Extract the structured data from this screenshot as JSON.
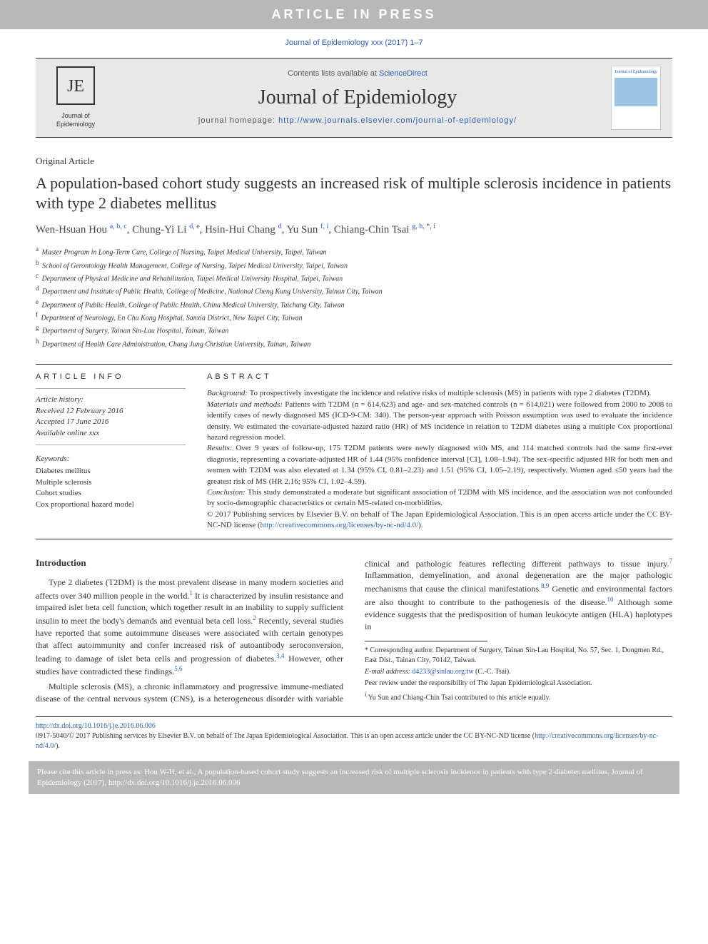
{
  "banner": "ARTICLE IN PRESS",
  "journal_ref": "Journal of Epidemiology xxx (2017) 1–7",
  "masthead": {
    "sd_prefix": "Contents lists available at ",
    "sd_link": "ScienceDirect",
    "journal_title": "Journal of Epidemiology",
    "homepage_prefix": "journal homepage: ",
    "homepage_url": "http://www.journals.elsevier.com/journal-of-epidemiology/",
    "logo_label": "Journal of Epidemiology",
    "cover_label": "Journal of Epidemiology"
  },
  "article_type": "Original Article",
  "title": "A population-based cohort study suggests an increased risk of multiple sclerosis incidence in patients with type 2 diabetes mellitus",
  "authors_html": "Wen-Hsuan Hou <sup>a, b, c</sup>, Chung-Yi Li <sup>d, e</sup>, Hsin-Hui Chang <sup>d</sup>, Yu Sun <sup>f, i</sup>, Chiang-Chin Tsai <sup>g, h, *, i</sup>",
  "affils": [
    {
      "s": "a",
      "t": "Master Program in Long-Term Care, College of Nursing, Taipei Medical University, Taipei, Taiwan"
    },
    {
      "s": "b",
      "t": "School of Gerontology Health Management, College of Nursing, Taipei Medical University, Taipei, Taiwan"
    },
    {
      "s": "c",
      "t": "Department of Physical Medicine and Rehabilitation, Taipei Medical University Hospital, Taipei, Taiwan"
    },
    {
      "s": "d",
      "t": "Department and Institute of Public Health, College of Medicine, National Cheng Kung University, Tainan City, Taiwan"
    },
    {
      "s": "e",
      "t": "Department of Public Health, College of Public Health, China Medical University, Taichung City, Taiwan"
    },
    {
      "s": "f",
      "t": "Department of Neurology, En Chu Kong Hospital, Sanxia District, New Taipei City, Taiwan"
    },
    {
      "s": "g",
      "t": "Department of Surgery, Tainan Sin-Lau Hospital, Tainan, Taiwan"
    },
    {
      "s": "h",
      "t": "Department of Health Care Administration, Chang Jung Christian University, Tainan, Taiwan"
    }
  ],
  "info": {
    "head": "ARTICLE INFO",
    "history_hd": "Article history:",
    "received": "Received 12 February 2016",
    "accepted": "Accepted 17 June 2016",
    "online": "Available online xxx",
    "kw_hd": "Keywords:",
    "keywords": [
      "Diabetes mellitus",
      "Multiple sclerosis",
      "Cohort studies",
      "Cox proportional hazard model"
    ]
  },
  "abstract": {
    "head": "ABSTRACT",
    "background_hd": "Background:",
    "background": " To prospectively investigate the incidence and relative risks of multiple sclerosis (MS) in patients with type 2 diabetes (T2DM).",
    "methods_hd": "Materials and methods:",
    "methods": " Patients with T2DM (n = 614,623) and age- and sex-matched controls (n = 614,021) were followed from 2000 to 2008 to identify cases of newly diagnosed MS (ICD-9-CM: 340). The person-year approach with Poisson assumption was used to evaluate the incidence density. We estimated the covariate-adjusted hazard ratio (HR) of MS incidence in relation to T2DM diabetes using a multiple Cox proportional hazard regression model.",
    "results_hd": "Results:",
    "results": " Over 9 years of follow-up, 175 T2DM patients were newly diagnosed with MS, and 114 matched controls had the same first-ever diagnosis, representing a covariate-adjusted HR of 1.44 (95% confidence interval [CI], 1.08–1.94). The sex-specific adjusted HR for both men and women with T2DM was also elevated at 1.34 (95% CI, 0.81–2.23) and 1.51 (95% CI, 1.05–2.19), respectively. Women aged ≤50 years had the greatest risk of MS (HR 2.16; 95% CI, 1.02–4.59).",
    "conclusion_hd": "Conclusion:",
    "conclusion": " This study demonstrated a moderate but significant association of T2DM with MS incidence, and the association was not confounded by socio-demographic characteristics or certain MS-related co-morbidities.",
    "copyright": "© 2017 Publishing services by Elsevier B.V. on behalf of The Japan Epidemiological Association. This is an open access article under the CC BY-NC-ND license (",
    "cc_url": "http://creativecommons.org/licenses/by-nc-nd/4.0/",
    "copyright_tail": ")."
  },
  "intro": {
    "head": "Introduction",
    "p1a": "Type 2 diabetes (T2DM) is the most prevalent disease in many modern societies and affects over 340 million people in the world.",
    "p1b": " It is characterized by insulin resistance and impaired islet beta cell function, which together result in an inability to supply sufficient insulin to meet the body's demands and eventual beta cell loss.",
    "p1c": " Recently, several studies have reported that some autoimmune",
    "p1d": "diseases were associated with certain genotypes that affect autoimmunity and confer increased risk of autoantibody seroconversion, leading to damage of islet beta cells and progression of diabetes.",
    "p1e": " However, other studies have contradicted these findings.",
    "p2a": "Multiple sclerosis (MS), a chronic inflammatory and progressive immune-mediated disease of the central nervous system (CNS), is a heterogeneous disorder with variable clinical and pathologic features reflecting different pathways to tissue injury.",
    "p2b": " Inflammation, demyelination, and axonal degeneration are the major pathologic mechanisms that cause the clinical manifestations.",
    "p2c": " Genetic and environmental factors are also thought to contribute to the pathogenesis of the disease.",
    "p2d": " Although some evidence suggests that the predisposition of human leukocyte antigen (HLA) haplotypes in"
  },
  "footnotes": {
    "corr": "* Corresponding author. Department of Surgery, Tainan Sin-Lau Hospital, No. 57, Sec. 1, Dongmen Rd., East Dist., Tainan City, 70142, Taiwan.",
    "email_label": "E-mail address: ",
    "email": "d4233@sinlau.org.tw",
    "email_tail": " (C.-C. Tsai).",
    "peer": "Peer review under the responsibility of The Japan Epidemiological Association.",
    "equal": "Yu Sun and Chiang-Chin Tsai contributed to this article equally."
  },
  "doi": {
    "url": "http://dx.doi.org/10.1016/j.je.2016.06.006",
    "line": "0917-5040/© 2017 Publishing services by Elsevier B.V. on behalf of The Japan Epidemiological Association. This is an open access article under the CC BY-NC-ND license (",
    "cc_url": "http://creativecommons.org/licenses/by-nc-nd/4.0/",
    "line_tail": ")."
  },
  "cite_box": "Please cite this article in press as: Hou W-H, et al., A population-based cohort study suggests an increased risk of multiple sclerosis incidence in patients with type 2 diabetes mellitus, Journal of Epidemiology (2017), http://dx.doi.org/10.1016/j.je.2016.06.006",
  "colors": {
    "banner_bg": "#b8b8b8",
    "link": "#2a5db0",
    "masthead_bg": "#e8e8e8",
    "text": "#333333"
  }
}
